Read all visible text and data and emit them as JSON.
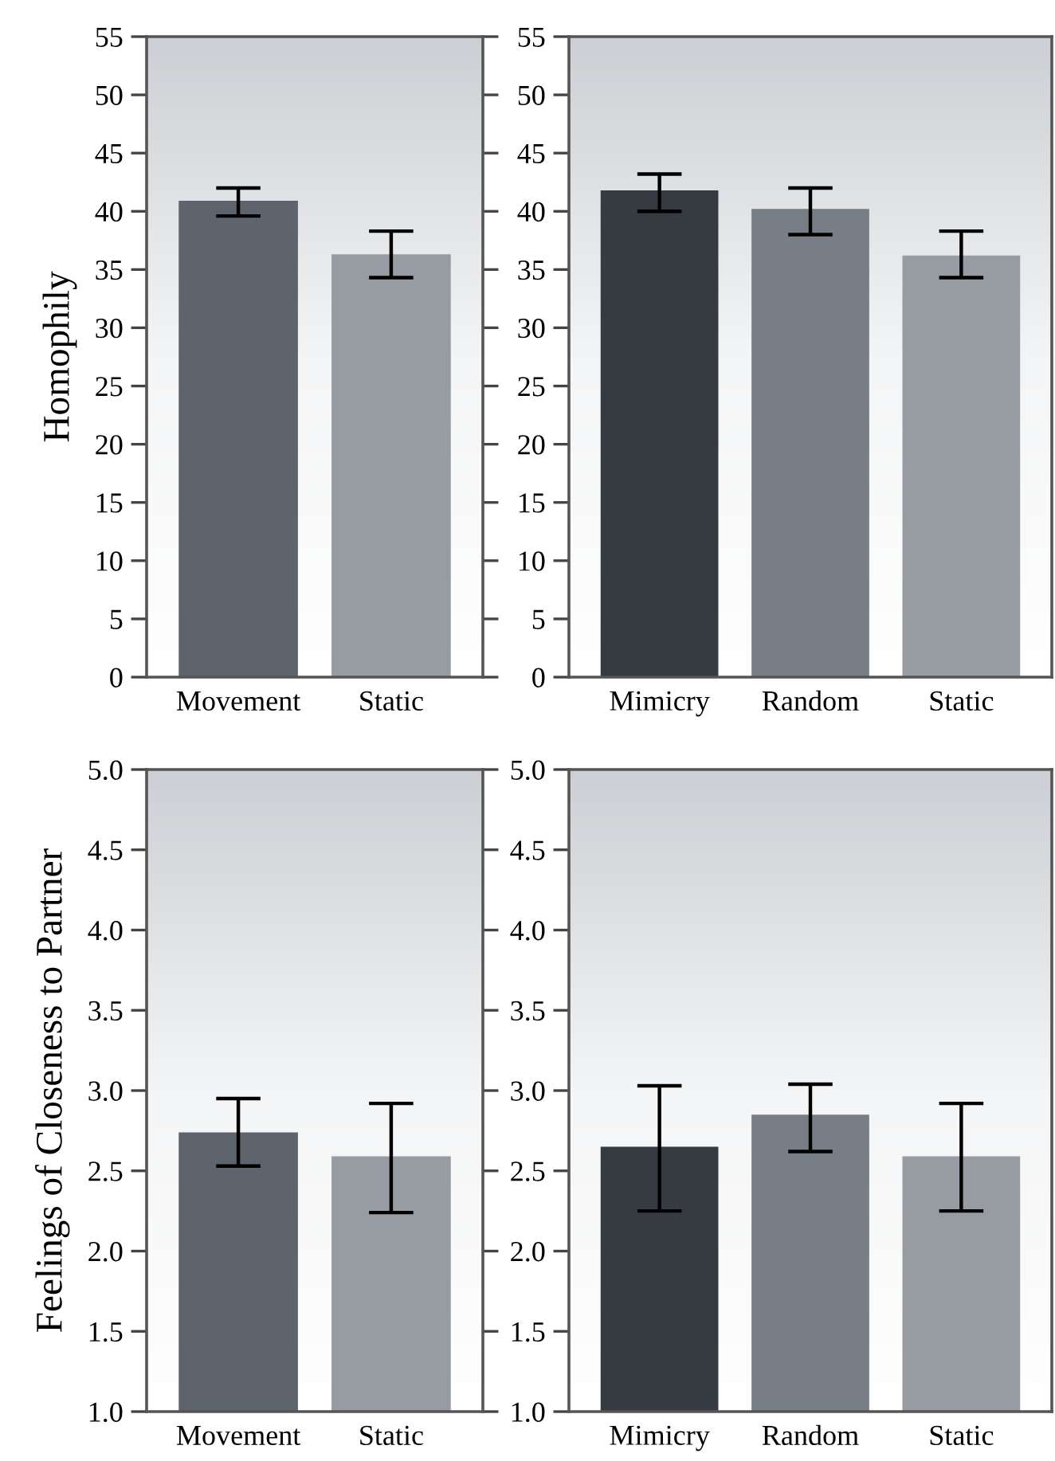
{
  "chart_data": [
    {
      "type": "bar",
      "ylabel": "Homophily",
      "categories": [
        "Movement",
        "Static"
      ],
      "values": [
        40.9,
        36.3
      ],
      "colors": [
        "#5e646b",
        "#969ca2"
      ],
      "errors": [
        [
          39.6,
          42.0
        ],
        [
          34.3,
          38.3
        ]
      ],
      "ylim": [
        0,
        55
      ],
      "yticks": [
        0,
        5,
        10,
        15,
        20,
        25,
        30,
        35,
        40,
        45,
        50,
        55
      ],
      "grid": false
    },
    {
      "type": "bar",
      "categories": [
        "Mimicry",
        "Random",
        "Static"
      ],
      "values": [
        41.8,
        40.2,
        36.2
      ],
      "colors": [
        "#363a41",
        "#787e85",
        "#969ca2"
      ],
      "errors": [
        [
          40.0,
          43.2
        ],
        [
          38.0,
          42.0
        ],
        [
          34.3,
          38.3
        ]
      ],
      "ylim": [
        0,
        55
      ],
      "yticks": [
        0,
        5,
        10,
        15,
        20,
        25,
        30,
        35,
        40,
        45,
        50,
        55
      ],
      "grid": false
    },
    {
      "type": "bar",
      "ylabel": "Feelings of Closeness to Partner",
      "categories": [
        "Movement",
        "Static"
      ],
      "values": [
        2.74,
        2.59
      ],
      "colors": [
        "#5e646b",
        "#969ca2"
      ],
      "errors": [
        [
          2.53,
          2.95
        ],
        [
          2.24,
          2.92
        ]
      ],
      "ylim": [
        1,
        5
      ],
      "yticks": [
        {
          "value": 1,
          "label": "1.0"
        },
        {
          "value": 1.5,
          "label": "1.5"
        },
        {
          "value": 2,
          "label": "2.0"
        },
        {
          "value": 2.5,
          "label": "2.5"
        },
        {
          "value": 3,
          "label": "3.0"
        },
        {
          "value": 3.5,
          "label": "3.5"
        },
        {
          "value": 4,
          "label": "4.0"
        },
        {
          "value": 4.5,
          "label": "4.5"
        },
        {
          "value": 5,
          "label": "5.0"
        }
      ],
      "grid": false
    },
    {
      "type": "bar",
      "categories": [
        "Mimicry",
        "Random",
        "Static"
      ],
      "values": [
        2.65,
        2.85,
        2.59
      ],
      "colors": [
        "#363a41",
        "#787e85",
        "#969ca2"
      ],
      "errors": [
        [
          2.25,
          3.03
        ],
        [
          2.62,
          3.04
        ],
        [
          2.25,
          2.92
        ]
      ],
      "ylim": [
        1,
        5
      ],
      "yticks": [
        {
          "value": 1,
          "label": "1.0"
        },
        {
          "value": 1.5,
          "label": "1.5"
        },
        {
          "value": 2,
          "label": "2.0"
        },
        {
          "value": 2.5,
          "label": "2.5"
        },
        {
          "value": 3,
          "label": "3.0"
        },
        {
          "value": 3.5,
          "label": "3.5"
        },
        {
          "value": 4,
          "label": "4.0"
        },
        {
          "value": 4.5,
          "label": "4.5"
        },
        {
          "value": 5,
          "label": "5.0"
        }
      ],
      "grid": false
    }
  ]
}
